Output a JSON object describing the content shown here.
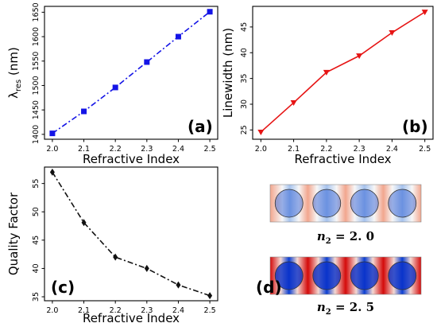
{
  "chart_data": [
    {
      "type": "line",
      "panel": "(a)",
      "x": [
        2.0,
        2.1,
        2.2,
        2.3,
        2.4,
        2.5
      ],
      "series": [
        {
          "values": [
            1402,
            1447,
            1496,
            1548,
            1600,
            1651
          ],
          "color": "#1414e6",
          "marker": "square",
          "linestyle": "dashdot"
        }
      ],
      "xlabel": "Refractive Index",
      "ylabel": "λres (nm)",
      "ylabel_main": "λ",
      "ylabel_sub": "res",
      "ylabel_unit": " (nm)",
      "xlim": [
        1.975,
        2.525
      ],
      "ylim": [
        1390,
        1662
      ],
      "xticks": [
        "2.0",
        "2.1",
        "2.2",
        "2.3",
        "2.4",
        "2.5"
      ],
      "yticks": [
        "1400",
        "1450",
        "1500",
        "1550",
        "1600",
        "1650"
      ]
    },
    {
      "type": "line",
      "panel": "(b)",
      "x": [
        2.0,
        2.1,
        2.2,
        2.3,
        2.4,
        2.5
      ],
      "series": [
        {
          "values": [
            24.6,
            30.3,
            36.2,
            39.4,
            43.9,
            47.9
          ],
          "color": "#e61414",
          "marker": "triangle-down",
          "linestyle": "solid"
        }
      ],
      "xlabel": "Refractive Index",
      "ylabel": "Linewidth (nm)",
      "xlim": [
        1.975,
        2.525
      ],
      "ylim": [
        23.2,
        49.0
      ],
      "xticks": [
        "2.0",
        "2.1",
        "2.2",
        "2.3",
        "2.4",
        "2.5"
      ],
      "yticks": [
        "25",
        "30",
        "35",
        "40",
        "45"
      ]
    },
    {
      "type": "line",
      "panel": "(c)",
      "x": [
        2.0,
        2.1,
        2.2,
        2.3,
        2.4,
        2.5
      ],
      "series": [
        {
          "values": [
            57.0,
            48.1,
            42.0,
            40.0,
            37.1,
            35.2
          ],
          "color": "#111111",
          "marker": "diamond",
          "linestyle": "dashdot"
        }
      ],
      "xlabel": "Refractive Index",
      "ylabel": "Quality Factor",
      "xlim": [
        1.975,
        2.525
      ],
      "ylim": [
        34.3,
        57.9
      ],
      "xticks": [
        "2.0",
        "2.1",
        "2.2",
        "2.3",
        "2.4",
        "2.5"
      ],
      "yticks": [
        "35",
        "40",
        "45",
        "50",
        "55"
      ]
    }
  ],
  "panel_d": {
    "label": "(d)",
    "fields": [
      {
        "label": "n2 = 2.0",
        "n_main": "n",
        "n_sub": "2",
        "n_value": " = 2. 0",
        "intensity": 0.5
      },
      {
        "label": "n2 = 2.5",
        "n_main": "n",
        "n_sub": "2",
        "n_value": " = 2. 5",
        "intensity": 1.0
      }
    ]
  }
}
